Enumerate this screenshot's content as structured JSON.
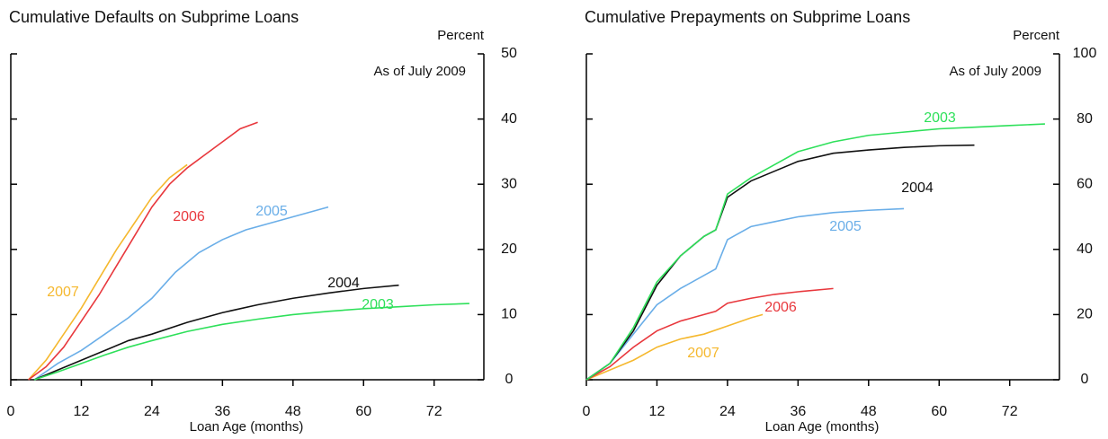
{
  "chart_data": [
    {
      "type": "line",
      "title": "Cumulative Defaults on Subprime Loans",
      "ylabel": "Percent",
      "annotation": "As of July 2009",
      "xlabel": "Loan Age (months)",
      "xlim": [
        0,
        80
      ],
      "xticks": [
        0,
        12,
        24,
        36,
        48,
        60,
        72
      ],
      "ylim": [
        0,
        50
      ],
      "yticks": [
        0,
        10,
        20,
        30,
        40,
        50
      ],
      "y_axis_side": "right",
      "series": [
        {
          "name": "2007",
          "color": "#f5b82e",
          "x": [
            3,
            6,
            9,
            12,
            15,
            18,
            21,
            24,
            27,
            30
          ],
          "values": [
            0,
            3,
            7,
            11,
            15.5,
            20,
            24,
            28,
            31,
            33
          ]
        },
        {
          "name": "2006",
          "color": "#e8383d",
          "x": [
            3,
            6,
            9,
            12,
            15,
            18,
            21,
            24,
            27,
            30,
            33,
            36,
            39,
            42
          ],
          "values": [
            0,
            2,
            5,
            9,
            13,
            17.5,
            22,
            26.5,
            30,
            32.5,
            34.5,
            36.5,
            38.5,
            39.5
          ]
        },
        {
          "name": "2005",
          "color": "#6aaee8",
          "x": [
            4,
            8,
            12,
            16,
            20,
            24,
            28,
            32,
            36,
            40,
            44,
            48,
            54
          ],
          "values": [
            0,
            2.5,
            4.5,
            7,
            9.5,
            12.5,
            16.5,
            19.5,
            21.5,
            23,
            24,
            25,
            26.5
          ]
        },
        {
          "name": "2004",
          "color": "#111111",
          "x": [
            4,
            8,
            12,
            16,
            20,
            24,
            30,
            36,
            42,
            48,
            54,
            60,
            66
          ],
          "values": [
            0,
            1.5,
            3,
            4.5,
            6,
            7,
            8.8,
            10.3,
            11.5,
            12.5,
            13.3,
            14,
            14.5
          ]
        },
        {
          "name": "2003",
          "color": "#2ee05a",
          "x": [
            4,
            8,
            12,
            16,
            20,
            24,
            30,
            36,
            42,
            48,
            54,
            60,
            66,
            72,
            78
          ],
          "values": [
            0,
            1.2,
            2.5,
            3.8,
            5,
            6,
            7.4,
            8.5,
            9.3,
            10,
            10.5,
            10.9,
            11.2,
            11.5,
            11.7
          ]
        }
      ]
    },
    {
      "type": "line",
      "title": "Cumulative Prepayments on Subprime Loans",
      "ylabel": "Percent",
      "annotation": "As of July 2009",
      "xlabel": "Loan Age (months)",
      "xlim": [
        0,
        80
      ],
      "xticks": [
        0,
        12,
        24,
        36,
        48,
        60,
        72
      ],
      "ylim": [
        0,
        100
      ],
      "yticks": [
        0,
        20,
        40,
        60,
        80,
        100
      ],
      "y_axis_side": "right",
      "series": [
        {
          "name": "2007",
          "color": "#f5b82e",
          "x": [
            0,
            4,
            8,
            12,
            16,
            20,
            24,
            28,
            30
          ],
          "values": [
            0,
            3,
            6,
            10,
            12.5,
            14,
            16.5,
            19,
            20
          ]
        },
        {
          "name": "2006",
          "color": "#e8383d",
          "x": [
            0,
            4,
            8,
            12,
            16,
            20,
            22,
            24,
            28,
            32,
            36,
            42
          ],
          "values": [
            0,
            4,
            10,
            15,
            18,
            20,
            21,
            23.5,
            25,
            26.2,
            27,
            28
          ]
        },
        {
          "name": "2005",
          "color": "#6aaee8",
          "x": [
            0,
            4,
            8,
            12,
            16,
            20,
            22,
            24,
            28,
            32,
            36,
            42,
            48,
            54
          ],
          "values": [
            0,
            5,
            14,
            23,
            28,
            32,
            34,
            43,
            47,
            48.5,
            50,
            51.3,
            52,
            52.5
          ]
        },
        {
          "name": "2004",
          "color": "#111111",
          "x": [
            0,
            4,
            8,
            12,
            16,
            20,
            22,
            24,
            28,
            32,
            36,
            42,
            48,
            54,
            60,
            66
          ],
          "values": [
            0,
            5,
            15,
            29,
            38,
            44,
            46,
            56,
            61,
            64,
            67,
            69.5,
            70.5,
            71.3,
            71.8,
            72
          ]
        },
        {
          "name": "2003",
          "color": "#2ee05a",
          "x": [
            0,
            4,
            8,
            12,
            16,
            20,
            22,
            24,
            28,
            32,
            36,
            42,
            48,
            54,
            60,
            66,
            72,
            78
          ],
          "values": [
            0,
            5,
            16,
            30,
            38,
            44,
            46,
            57,
            62,
            66,
            70,
            73,
            75,
            76,
            77,
            77.5,
            78,
            78.5
          ]
        }
      ]
    }
  ]
}
